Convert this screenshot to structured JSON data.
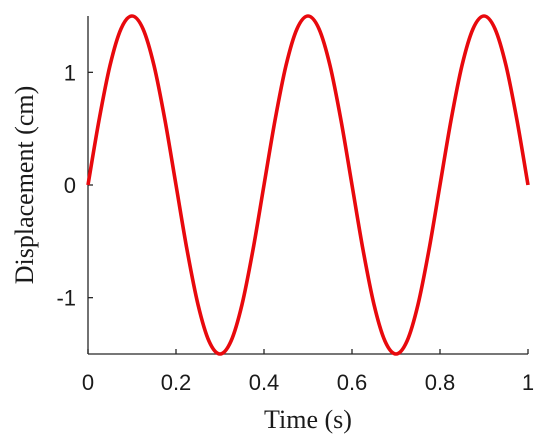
{
  "chart_data": {
    "type": "line",
    "title": "",
    "xlabel": "Time (s)",
    "ylabel": "Displacement (cm)",
    "xlim": [
      0,
      1
    ],
    "ylim": [
      -1.5,
      1.5
    ],
    "xticks": [
      0,
      0.2,
      0.4,
      0.6,
      0.8,
      1
    ],
    "xtick_labels": [
      "0",
      "0.2",
      "0.4",
      "0.6",
      "0.8",
      "1"
    ],
    "yticks": [
      -1,
      0,
      1
    ],
    "ytick_labels": [
      "-1",
      "0",
      "1"
    ],
    "grid": false,
    "series": [
      {
        "color": "#e8090d",
        "x": [
          0,
          0.025,
          0.05,
          0.075,
          0.1,
          0.125,
          0.15,
          0.175,
          0.2,
          0.225,
          0.25,
          0.275,
          0.3,
          0.325,
          0.35,
          0.375,
          0.4,
          0.425,
          0.45,
          0.475,
          0.5,
          0.525,
          0.55,
          0.575,
          0.6,
          0.625,
          0.65,
          0.675,
          0.7,
          0.725,
          0.75,
          0.775,
          0.8,
          0.825,
          0.85,
          0.875,
          0.9,
          0.925,
          0.95,
          0.975,
          1
        ],
        "y": [
          0,
          0.574,
          1.061,
          1.386,
          1.5,
          1.386,
          1.061,
          0.574,
          0,
          -0.574,
          -1.061,
          -1.386,
          -1.5,
          -1.386,
          -1.061,
          -0.574,
          0,
          0.574,
          1.061,
          1.386,
          1.5,
          1.386,
          1.061,
          0.574,
          0,
          -0.574,
          -1.061,
          -1.386,
          -1.5,
          -1.386,
          -1.061,
          -0.574,
          0,
          0.574,
          1.061,
          1.386,
          1.5,
          1.386,
          1.061,
          0.574,
          0
        ]
      }
    ]
  }
}
